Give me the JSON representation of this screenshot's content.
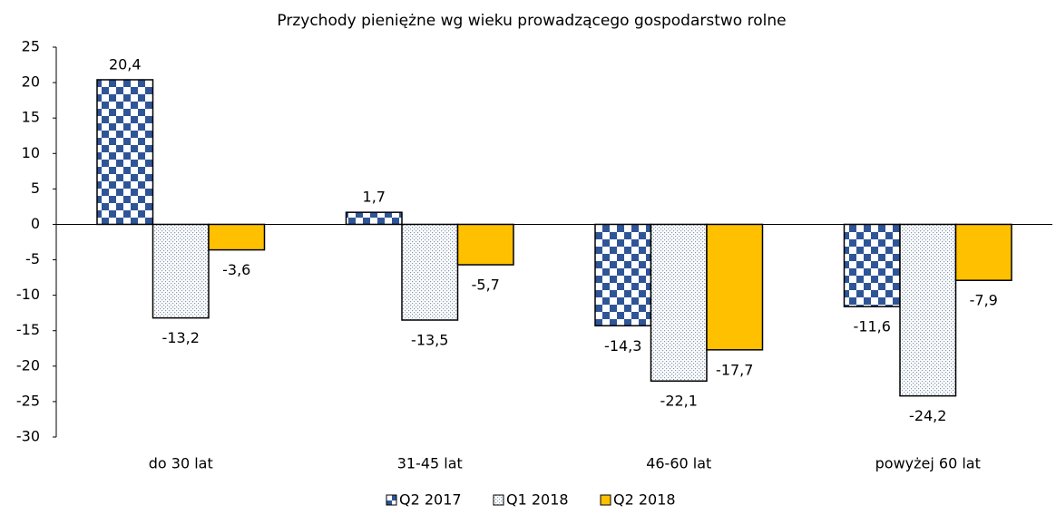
{
  "chart_data": {
    "type": "bar",
    "title": "Przychody pieniężne wg wieku prowadzącego gospodarstwo rolne",
    "categories": [
      "do 30 lat",
      "31-45 lat",
      "46-60 lat",
      "powyżej 60 lat"
    ],
    "series": [
      {
        "name": "Q2 2017",
        "color": "#2f5597",
        "pattern": "checker",
        "values": [
          20.4,
          1.7,
          -14.3,
          -11.6
        ],
        "value_labels": [
          "20,4",
          "1,7",
          "-14,3",
          "-11,6"
        ]
      },
      {
        "name": "Q1 2018",
        "color": "#8497b0",
        "pattern": "dots",
        "values": [
          -13.2,
          -13.5,
          -22.1,
          -24.2
        ],
        "value_labels": [
          "-13,2",
          "-13,5",
          "-22,1",
          "-24,2"
        ]
      },
      {
        "name": "Q2 2018",
        "color": "#ffc000",
        "pattern": "solid",
        "values": [
          -3.6,
          -5.7,
          -17.7,
          -7.9
        ],
        "value_labels": [
          "-3,6",
          "-5,7",
          "-17,7",
          "-7,9"
        ]
      }
    ],
    "ylim": [
      -30,
      25
    ],
    "yticks": [
      -30,
      -25,
      -20,
      -15,
      -10,
      -5,
      0,
      5,
      10,
      15,
      20,
      25
    ],
    "grid": false,
    "legend": "bottom"
  }
}
